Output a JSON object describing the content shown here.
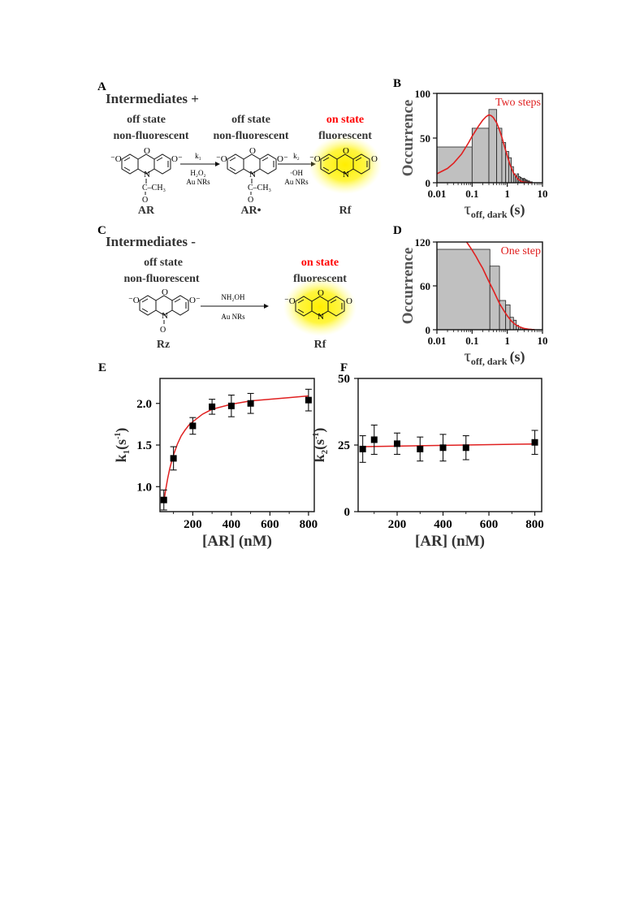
{
  "panels": {
    "A": {
      "letter": "A",
      "title": "Intermediates +",
      "states": [
        {
          "line1": "off state",
          "line2": "non-fluorescent",
          "molecule": "AR"
        },
        {
          "line1": "off state",
          "line2": "non-fluorescent",
          "molecule": "AR•"
        },
        {
          "line1": "on state",
          "line2": "fluorescent",
          "molecule": "Rf"
        }
      ],
      "step1": {
        "k": "k₁",
        "cond1": "H₂O₂",
        "cond2": "Au NRs"
      },
      "step2": {
        "k": "k₂",
        "cond1": "·OH",
        "cond2": "Au NRs"
      },
      "group": "C–CH₃",
      "carbonyl_o": "O"
    },
    "C": {
      "letter": "C",
      "title": "Intermediates -",
      "states": [
        {
          "line1": "off state",
          "line2": "non-fluorescent",
          "molecule": "Rz"
        },
        {
          "line1": "on state",
          "line2": "fluorescent",
          "molecule": "Rf"
        }
      ],
      "step": {
        "cond1": "NH₂OH",
        "cond2": "Au NRs"
      },
      "n_oxide": "O"
    },
    "atoms": {
      "O": "O",
      "O_minus": "⁻O",
      "O_minus_right": "O⁻",
      "N": "N"
    },
    "colors": {
      "on_state": "#ff0000",
      "glow": "#ffee00",
      "bar": "#c0c0c0",
      "fit": "#e02020"
    }
  },
  "chart_data": [
    {
      "panel": "B",
      "type": "bar",
      "title": "",
      "legend": "Two steps",
      "legend_placement": "top-right",
      "xlabel": "τ",
      "xlabel_sub": "off, dark",
      "xlabel_unit": "(s)",
      "ylabel": "Occurrence",
      "xscale": "log",
      "xlim": [
        0.01,
        10
      ],
      "ylim": [
        0,
        100
      ],
      "xticks": [
        "0.01",
        "0.1",
        "1",
        "10"
      ],
      "yticks": [
        "0",
        "50",
        "100"
      ],
      "bins": [
        {
          "x0": 0.01,
          "x1": 0.1,
          "value": 40
        },
        {
          "x0": 0.1,
          "x1": 0.3,
          "value": 61
        },
        {
          "x0": 0.3,
          "x1": 0.5,
          "value": 82
        },
        {
          "x0": 0.5,
          "x1": 0.7,
          "value": 61
        },
        {
          "x0": 0.7,
          "x1": 0.9,
          "value": 45
        },
        {
          "x0": 0.9,
          "x1": 1.1,
          "value": 35
        },
        {
          "x0": 1.1,
          "x1": 1.3,
          "value": 28
        },
        {
          "x0": 1.3,
          "x1": 1.5,
          "value": 18
        },
        {
          "x0": 1.5,
          "x1": 1.7,
          "value": 10
        },
        {
          "x0": 1.7,
          "x1": 1.9,
          "value": 8
        },
        {
          "x0": 1.9,
          "x1": 2.1,
          "value": 10
        },
        {
          "x0": 2.1,
          "x1": 2.3,
          "value": 7
        },
        {
          "x0": 2.3,
          "x1": 2.5,
          "value": 6
        },
        {
          "x0": 2.5,
          "x1": 2.7,
          "value": 5
        },
        {
          "x0": 2.7,
          "x1": 2.9,
          "value": 4
        },
        {
          "x0": 2.9,
          "x1": 3.1,
          "value": 5
        },
        {
          "x0": 3.1,
          "x1": 3.3,
          "value": 4
        },
        {
          "x0": 3.3,
          "x1": 3.5,
          "value": 3
        },
        {
          "x0": 3.5,
          "x1": 3.7,
          "value": 3
        },
        {
          "x0": 3.7,
          "x1": 3.9,
          "value": 2
        },
        {
          "x0": 3.9,
          "x1": 4.1,
          "value": 2
        },
        {
          "x0": 4.1,
          "x1": 4.3,
          "value": 2
        },
        {
          "x0": 4.3,
          "x1": 4.5,
          "value": 1
        },
        {
          "x0": 4.5,
          "x1": 4.7,
          "value": 1
        },
        {
          "x0": 4.7,
          "x1": 4.9,
          "value": 1
        },
        {
          "x0": 4.9,
          "x1": 5.1,
          "value": 1
        }
      ],
      "fit": {
        "x": [
          0.01,
          0.02,
          0.03,
          0.05,
          0.08,
          0.1,
          0.15,
          0.2,
          0.25,
          0.3,
          0.35,
          0.4,
          0.5,
          0.6,
          0.7,
          0.8,
          1.0,
          1.2,
          1.5,
          2.0,
          2.5,
          3.0,
          4.0,
          5.0
        ],
        "y": [
          10,
          16,
          22,
          32,
          45,
          52,
          63,
          70,
          74,
          76,
          75,
          73,
          67,
          59,
          51,
          43,
          30,
          20,
          11,
          4,
          1.5,
          0.6,
          0.2,
          0
        ]
      }
    },
    {
      "panel": "D",
      "type": "bar",
      "title": "",
      "legend": "One step",
      "legend_placement": "top-right",
      "xlabel": "τ",
      "xlabel_sub": "off, dark",
      "xlabel_unit": "(s)",
      "ylabel": "Occurrence",
      "xscale": "log",
      "xlim": [
        0.01,
        10
      ],
      "ylim": [
        0,
        120
      ],
      "xticks": [
        "0.01",
        "0.1",
        "1",
        "10"
      ],
      "yticks": [
        "0",
        "60",
        "120"
      ],
      "bins": [
        {
          "x0": 0.01,
          "x1": 0.32,
          "value": 110
        },
        {
          "x0": 0.32,
          "x1": 0.6,
          "value": 87
        },
        {
          "x0": 0.6,
          "x1": 0.9,
          "value": 40
        },
        {
          "x0": 0.9,
          "x1": 1.2,
          "value": 34
        },
        {
          "x0": 1.2,
          "x1": 1.5,
          "value": 17
        },
        {
          "x0": 1.5,
          "x1": 1.8,
          "value": 13
        },
        {
          "x0": 1.8,
          "x1": 2.1,
          "value": 6
        },
        {
          "x0": 2.1,
          "x1": 2.4,
          "value": 4
        },
        {
          "x0": 2.4,
          "x1": 2.7,
          "value": 3
        },
        {
          "x0": 2.7,
          "x1": 3.0,
          "value": 2
        },
        {
          "x0": 3.0,
          "x1": 3.3,
          "value": 1
        },
        {
          "x0": 3.3,
          "x1": 3.6,
          "value": 1
        }
      ],
      "fit": {
        "x": [
          0.07,
          0.1,
          0.13,
          0.16,
          0.2,
          0.25,
          0.3,
          0.4,
          0.5,
          0.6,
          0.8,
          1.0,
          1.3,
          1.6,
          2.0,
          2.5,
          3.0,
          4.0,
          5.0,
          6.0
        ],
        "y": [
          120,
          109,
          100,
          92,
          84,
          74,
          66,
          54,
          44,
          36,
          26,
          19,
          12,
          8,
          5,
          3,
          1.8,
          0.8,
          0.3,
          0.1
        ]
      }
    },
    {
      "panel": "E",
      "type": "scatter",
      "title": "",
      "xlabel": "[AR] (nM)",
      "ylabel": "k",
      "ylabel_sub": "1",
      "ylabel_unit": "(s",
      "ylabel_sup": "-1",
      "xlim": [
        30,
        830
      ],
      "ylim": [
        0.7,
        2.3
      ],
      "xticks": [
        200,
        400,
        600,
        800
      ],
      "yticks": [
        1.0,
        1.5,
        2.0
      ],
      "ytick_labels": [
        "1.0",
        "1.5",
        "2.0"
      ],
      "points": [
        {
          "x": 50,
          "y": 0.84,
          "err": 0.12
        },
        {
          "x": 100,
          "y": 1.34,
          "err": 0.14
        },
        {
          "x": 200,
          "y": 1.73,
          "err": 0.1
        },
        {
          "x": 300,
          "y": 1.96,
          "err": 0.09
        },
        {
          "x": 400,
          "y": 1.97,
          "err": 0.13
        },
        {
          "x": 500,
          "y": 2.0,
          "err": 0.12
        },
        {
          "x": 800,
          "y": 2.04,
          "err": 0.13
        }
      ],
      "fit": {
        "x": [
          50,
          60,
          70,
          80,
          90,
          100,
          120,
          140,
          160,
          180,
          200,
          250,
          300,
          400,
          500,
          600,
          700,
          800
        ],
        "y": [
          0.82,
          0.97,
          1.1,
          1.21,
          1.3,
          1.38,
          1.51,
          1.61,
          1.68,
          1.74,
          1.78,
          1.87,
          1.93,
          1.99,
          2.03,
          2.05,
          2.07,
          2.09
        ]
      }
    },
    {
      "panel": "F",
      "type": "scatter",
      "title": "",
      "xlabel": "[AR] (nM)",
      "ylabel": "k",
      "ylabel_sub": "2",
      "ylabel_unit": "(s",
      "ylabel_sup": "-1",
      "xlim": [
        30,
        830
      ],
      "ylim": [
        0,
        50
      ],
      "xticks": [
        200,
        400,
        600,
        800
      ],
      "yticks": [
        0,
        25,
        50
      ],
      "ytick_labels": [
        "0",
        "25",
        "50"
      ],
      "points": [
        {
          "x": 50,
          "y": 23.5,
          "err": 5.0
        },
        {
          "x": 100,
          "y": 27.0,
          "err": 5.5
        },
        {
          "x": 200,
          "y": 25.5,
          "err": 4.0
        },
        {
          "x": 300,
          "y": 23.5,
          "err": 4.5
        },
        {
          "x": 400,
          "y": 24.0,
          "err": 5.0
        },
        {
          "x": 500,
          "y": 24.0,
          "err": 4.5
        },
        {
          "x": 800,
          "y": 26.0,
          "err": 4.5
        }
      ],
      "fit": {
        "x": [
          50,
          800
        ],
        "y": [
          24.4,
          25.4
        ]
      }
    }
  ]
}
